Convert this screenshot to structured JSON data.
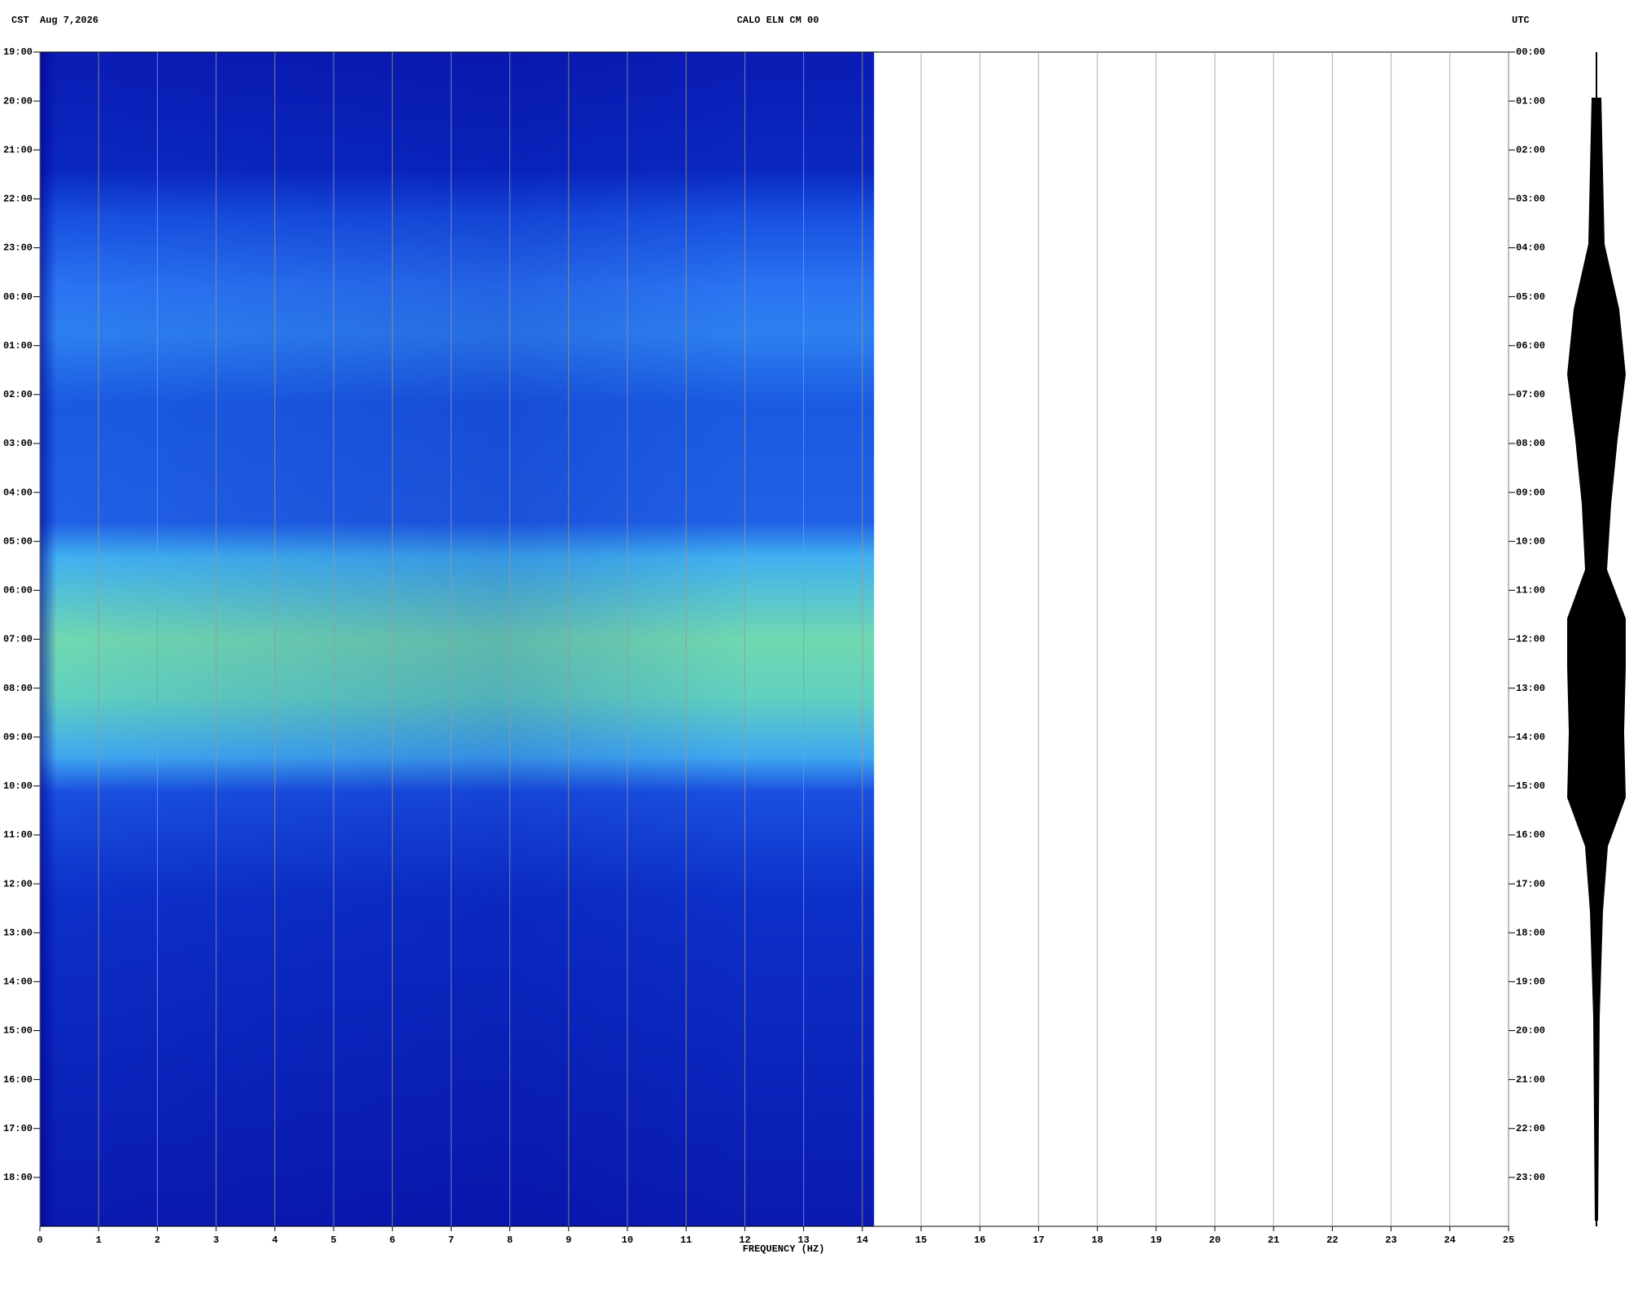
{
  "chart_data": {
    "type": "spectrogram",
    "title": "CALO ELN CM 00",
    "left_zone": "CST",
    "date": "Aug 7,2026",
    "right_zone": "UTC",
    "x_label": "FREQUENCY (HZ)",
    "xlim": [
      0,
      25
    ],
    "xticks": [
      0,
      1,
      2,
      3,
      4,
      5,
      6,
      7,
      8,
      9,
      10,
      11,
      12,
      13,
      14,
      15,
      16,
      17,
      18,
      19,
      20,
      21,
      22,
      23,
      24,
      25
    ],
    "spectrum_xlim": [
      0,
      14.2
    ],
    "ylim": [
      0,
      24
    ],
    "yticks": [
      {
        "value": 0,
        "label": "19:00"
      },
      {
        "value": 1,
        "label": "20:00"
      },
      {
        "value": 2,
        "label": "21:00"
      },
      {
        "value": 3,
        "label": "22:00"
      },
      {
        "value": 4,
        "label": "23:00"
      },
      {
        "value": 5,
        "label": "00:00"
      },
      {
        "value": 6,
        "label": "01:00"
      },
      {
        "value": 7,
        "label": "02:00"
      },
      {
        "value": 8,
        "label": "03:00"
      },
      {
        "value": 9,
        "label": "04:00"
      },
      {
        "value": 10,
        "label": "05:00"
      },
      {
        "value": 11,
        "label": "06:00"
      },
      {
        "value": 12,
        "label": "07:00"
      },
      {
        "value": 13,
        "label": "08:00"
      },
      {
        "value": 14,
        "label": "09:00"
      },
      {
        "value": 15,
        "label": "10:00"
      },
      {
        "value": 16,
        "label": "11:00"
      },
      {
        "value": 17,
        "label": "12:00"
      },
      {
        "value": 18,
        "label": "13:00"
      },
      {
        "value": 19,
        "label": "14:00"
      },
      {
        "value": 20,
        "label": "15:00"
      },
      {
        "value": 21,
        "label": "16:00"
      },
      {
        "value": 22,
        "label": "17:00"
      },
      {
        "value": 23,
        "label": "18:00"
      }
    ],
    "y2lim": [
      0,
      24
    ],
    "y2ticks": [
      {
        "value": 0,
        "label": "00:00"
      },
      {
        "value": 1,
        "label": "01:00"
      },
      {
        "value": 2,
        "label": "02:00"
      },
      {
        "value": 3,
        "label": "03:00"
      },
      {
        "value": 4,
        "label": "04:00"
      },
      {
        "value": 5,
        "label": "05:00"
      },
      {
        "value": 6,
        "label": "06:00"
      },
      {
        "value": 7,
        "label": "07:00"
      },
      {
        "value": 8,
        "label": "08:00"
      },
      {
        "value": 9,
        "label": "09:00"
      },
      {
        "value": 10,
        "label": "10:00"
      },
      {
        "value": 11,
        "label": "11:00"
      },
      {
        "value": 12,
        "label": "12:00"
      },
      {
        "value": 13,
        "label": "13:00"
      },
      {
        "value": 14,
        "label": "14:00"
      },
      {
        "value": 15,
        "label": "15:00"
      },
      {
        "value": 16,
        "label": "16:00"
      },
      {
        "value": 17,
        "label": "17:00"
      },
      {
        "value": 18,
        "label": "18:00"
      },
      {
        "value": 19,
        "label": "19:00"
      },
      {
        "value": 20,
        "label": "20:00"
      },
      {
        "value": 21,
        "label": "21:00"
      },
      {
        "value": 22,
        "label": "22:00"
      },
      {
        "value": 23,
        "label": "23:00"
      }
    ],
    "grid": true
  }
}
